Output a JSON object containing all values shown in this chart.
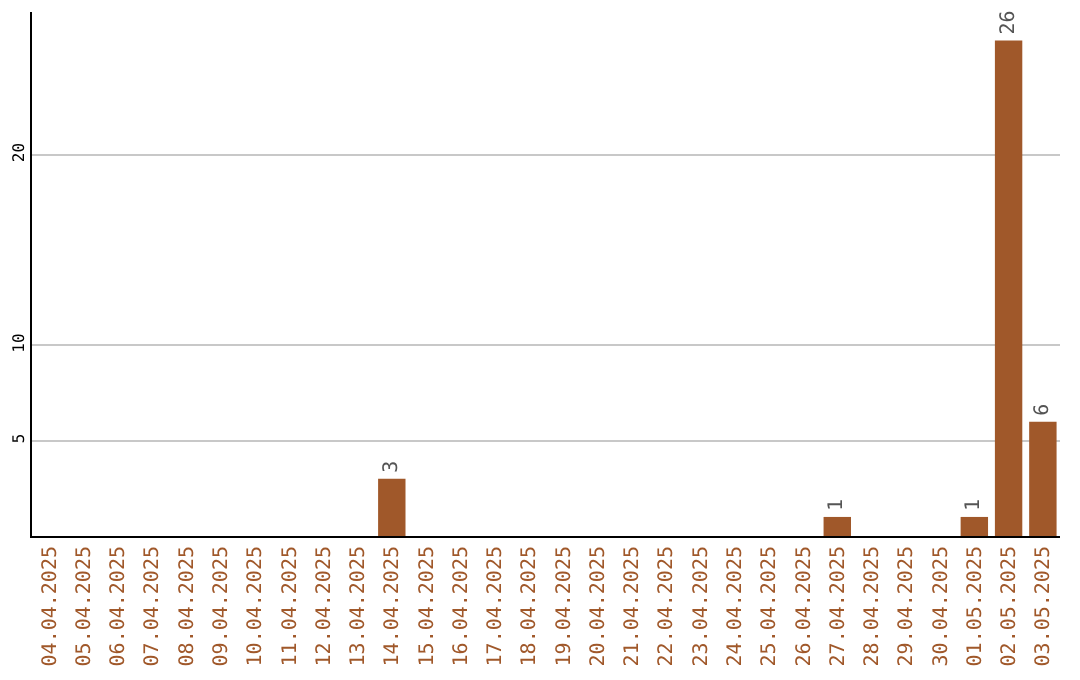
{
  "chart_data": {
    "type": "bar",
    "categories": [
      "04.04.2025",
      "05.04.2025",
      "06.04.2025",
      "07.04.2025",
      "08.04.2025",
      "09.04.2025",
      "10.04.2025",
      "11.04.2025",
      "12.04.2025",
      "13.04.2025",
      "14.04.2025",
      "15.04.2025",
      "16.04.2025",
      "17.04.2025",
      "18.04.2025",
      "19.04.2025",
      "20.04.2025",
      "21.04.2025",
      "22.04.2025",
      "23.04.2025",
      "24.04.2025",
      "25.04.2025",
      "26.04.2025",
      "27.04.2025",
      "28.04.2025",
      "29.04.2025",
      "30.04.2025",
      "01.05.2025",
      "02.05.2025",
      "03.05.2025"
    ],
    "values": [
      0,
      0,
      0,
      0,
      0,
      0,
      0,
      0,
      0,
      0,
      3,
      0,
      0,
      0,
      0,
      0,
      0,
      0,
      0,
      0,
      0,
      0,
      0,
      1,
      0,
      0,
      0,
      1,
      26,
      6
    ],
    "value_labels": [
      null,
      null,
      null,
      null,
      null,
      null,
      null,
      null,
      null,
      null,
      "3",
      null,
      null,
      null,
      null,
      null,
      null,
      null,
      null,
      null,
      null,
      null,
      null,
      "1",
      null,
      null,
      null,
      "1",
      "26",
      "6"
    ],
    "color": "#a0582a",
    "ylim": [
      0,
      27.5
    ],
    "yticks": [
      5,
      10,
      20
    ],
    "grid": "y",
    "legend": false
  }
}
